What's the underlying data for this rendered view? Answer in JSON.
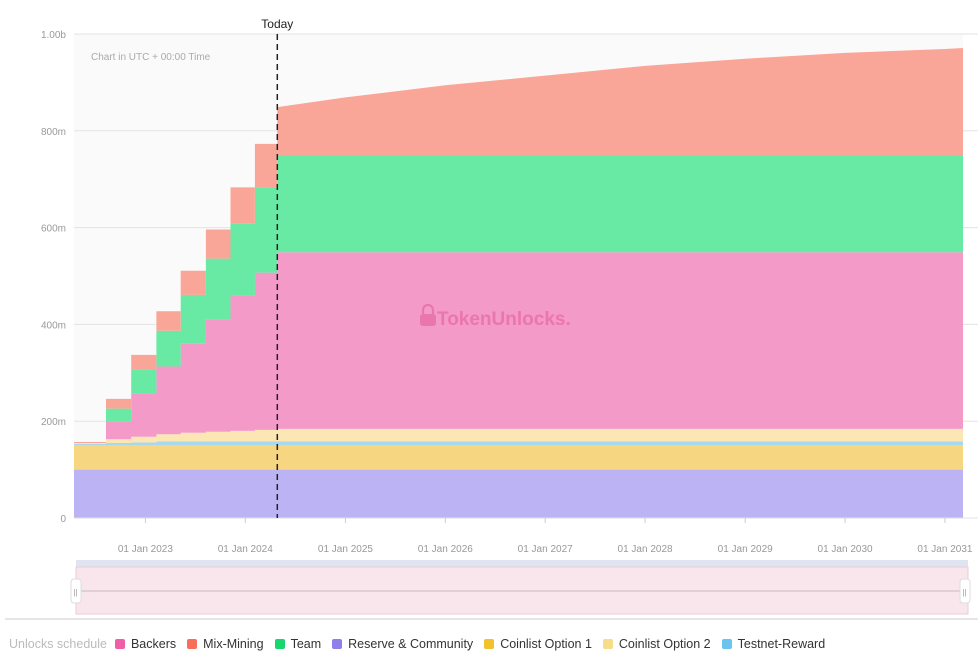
{
  "chart_data": {
    "type": "area",
    "stacked": true,
    "note": "Chart in UTC + 00:00 Time",
    "today_label": "Today",
    "today": "2024-04-27",
    "watermark": "TokenUnlocks.",
    "ylim": [
      0,
      1000000000
    ],
    "y_ticks": [
      {
        "v": 0,
        "label": "0"
      },
      {
        "v": 200000000,
        "label": "200m"
      },
      {
        "v": 400000000,
        "label": "400m"
      },
      {
        "v": 600000000,
        "label": "600m"
      },
      {
        "v": 800000000,
        "label": "800m"
      },
      {
        "v": 1000000000,
        "label": "1.00b"
      }
    ],
    "xlim": [
      "2022-04-15",
      "2031-03-08"
    ],
    "x_ticks": [
      "01 Jan 2023",
      "01 Jan 2024",
      "01 Jan 2025",
      "01 Jan 2026",
      "01 Jan 2027",
      "01 Jan 2028",
      "01 Jan 2029",
      "01 Jan 2030",
      "01 Jan 2031"
    ],
    "grid": true,
    "legend_title": "Unlocks schedule",
    "legend_placement": "bottom",
    "x": [
      "2022-04-15",
      "2022-08-10",
      "2022-11-10",
      "2023-02-10",
      "2023-05-10",
      "2023-08-10",
      "2023-11-08",
      "2024-02-05",
      "2024-04-27",
      "2025-01-01",
      "2026-01-01",
      "2027-01-01",
      "2028-01-01",
      "2029-01-01",
      "2030-01-01",
      "2031-01-01",
      "2031-03-08"
    ],
    "unit": "millions",
    "series": [
      {
        "name": "Reserve & Community",
        "color": "#bcb3f5",
        "legend_color": "#8f7fe8",
        "values": [
          100,
          100,
          100,
          100,
          100,
          100,
          100,
          100,
          100,
          100,
          100,
          100,
          100,
          100,
          100,
          100,
          100
        ]
      },
      {
        "name": "Coinlist Option 1",
        "color": "#f6d681",
        "legend_color": "#f2c12e",
        "values": [
          50,
          50,
          50,
          50,
          50,
          50,
          50,
          50,
          50,
          50,
          50,
          50,
          50,
          50,
          50,
          50,
          50
        ]
      },
      {
        "name": "Testnet-Reward",
        "color": "#a8d8ee",
        "legend_color": "#6cc3ef",
        "values": [
          3,
          5,
          6,
          8,
          8,
          8,
          8,
          8,
          8,
          8,
          8,
          8,
          8,
          8,
          8,
          8,
          8
        ]
      },
      {
        "name": "Coinlist Option 2",
        "color": "#fbe6b4",
        "legend_color": "#f7dc8a",
        "values": [
          2,
          8,
          12,
          15,
          18,
          20,
          22,
          24,
          26,
          26,
          26,
          26,
          26,
          26,
          26,
          26,
          26
        ]
      },
      {
        "name": "Backers",
        "color": "#f39ac8",
        "legend_color": "#ee5fa8",
        "values": [
          0,
          37,
          90,
          140,
          185,
          233,
          280,
          325,
          365,
          365,
          365,
          365,
          365,
          365,
          365,
          365,
          365
        ]
      },
      {
        "name": "Team",
        "color": "#68e9a4",
        "legend_color": "#17d66e",
        "values": [
          0,
          26,
          49,
          74,
          100,
          125,
          148,
          176,
          200,
          200,
          200,
          200,
          200,
          200,
          200,
          200,
          200
        ]
      },
      {
        "name": "Mix-Mining",
        "color": "#f9a597",
        "legend_color": "#f76e5a",
        "values": [
          2,
          20,
          30,
          40,
          50,
          60,
          75,
          90,
          100,
          120,
          145,
          165,
          185,
          200,
          212,
          220,
          222
        ]
      }
    ],
    "legend_order": [
      "Backers",
      "Mix-Mining",
      "Team",
      "Reserve & Community",
      "Coinlist Option 1",
      "Coinlist Option 2",
      "Testnet-Reward"
    ]
  }
}
